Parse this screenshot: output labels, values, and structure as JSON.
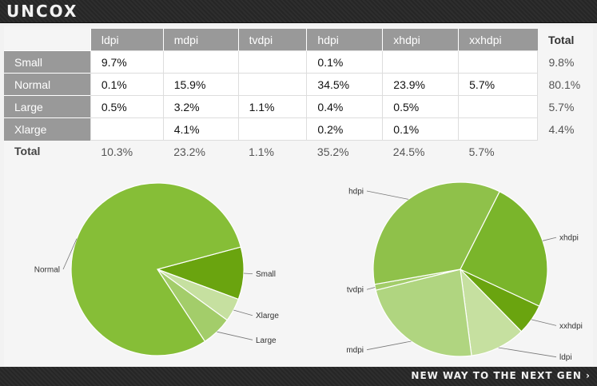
{
  "brand": {
    "logo": "UNCOX",
    "tagline": "NEW WAY TO THE NEXT GEN ›"
  },
  "colors": {
    "header_bg": "#999999",
    "pie_light": "#c5e1a5",
    "pie_mid": "#8bc34a",
    "pie_dark": "#689f38"
  },
  "chart_data": [
    {
      "type": "table",
      "columns": [
        "ldpi",
        "mdpi",
        "tvdpi",
        "hdpi",
        "xhdpi",
        "xxhdpi",
        "Total"
      ],
      "rows": [
        {
          "label": "Small",
          "values": [
            "9.7%",
            "",
            "",
            "0.1%",
            "",
            ""
          ],
          "total": "9.8%"
        },
        {
          "label": "Normal",
          "values": [
            "0.1%",
            "15.9%",
            "",
            "34.5%",
            "23.9%",
            "5.7%"
          ],
          "total": "80.1%"
        },
        {
          "label": "Large",
          "values": [
            "0.5%",
            "3.2%",
            "1.1%",
            "0.4%",
            "0.5%",
            ""
          ],
          "total": "5.7%"
        },
        {
          "label": "Xlarge",
          "values": [
            "",
            "4.1%",
            "",
            "0.2%",
            "0.1%",
            ""
          ],
          "total": "4.4%"
        }
      ],
      "total_row": {
        "label": "Total",
        "values": [
          "10.3%",
          "23.2%",
          "1.1%",
          "35.2%",
          "24.5%",
          "5.7%"
        ]
      }
    },
    {
      "type": "pie",
      "slices": [
        {
          "label": "Small",
          "value": 9.8,
          "color": "#6aa40f"
        },
        {
          "label": "Xlarge",
          "value": 4.4,
          "color": "#c6e0a0"
        },
        {
          "label": "Large",
          "value": 5.7,
          "color": "#a3cd6a"
        },
        {
          "label": "Normal",
          "value": 80.1,
          "color": "#86be37"
        }
      ]
    },
    {
      "type": "pie",
      "slices": [
        {
          "label": "xxhdpi",
          "value": 5.7,
          "color": "#6aa40f"
        },
        {
          "label": "ldpi",
          "value": 10.3,
          "color": "#c6e0a0"
        },
        {
          "label": "mdpi",
          "value": 23.2,
          "color": "#b0d580"
        },
        {
          "label": "tvdpi",
          "value": 1.1,
          "color": "#a3cd6a"
        },
        {
          "label": "hdpi",
          "value": 35.2,
          "color": "#8fc14a"
        },
        {
          "label": "xhdpi",
          "value": 24.5,
          "color": "#7ab52b"
        }
      ]
    }
  ]
}
